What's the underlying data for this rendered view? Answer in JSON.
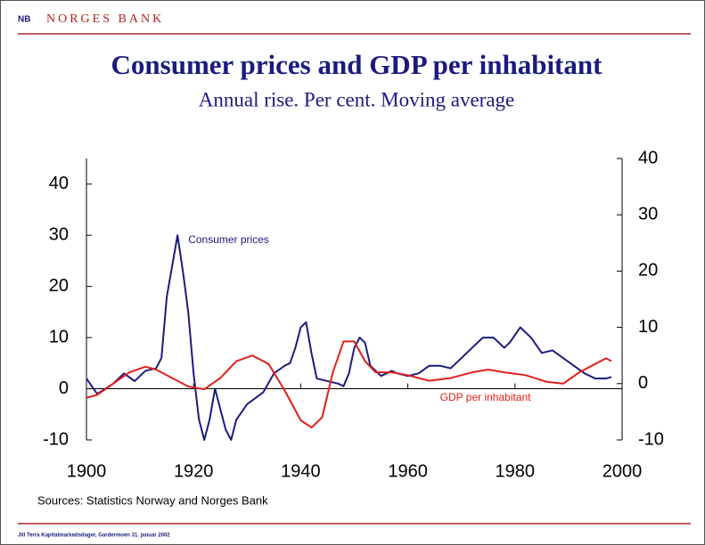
{
  "header": {
    "logo": "NB",
    "brand": "NORGES BANK"
  },
  "footer": "Jill Terra Kapitalmarkedsdager, Gardermoen 31. januar 2002",
  "chart_data": {
    "type": "line",
    "title": "Consumer prices and GDP per inhabitant",
    "subtitle": "Annual rise. Per cent. Moving average",
    "source": "Sources: Statistics Norway and Norges Bank",
    "xlim": [
      1900,
      2000
    ],
    "xticks": [
      1900,
      1920,
      1940,
      1960,
      1980,
      2000
    ],
    "ylim": [
      -10,
      45
    ],
    "yticks": [
      -10,
      0,
      10,
      20,
      30,
      40
    ],
    "y2lim": [
      -10,
      40
    ],
    "y2ticks": [
      -10,
      0,
      10,
      20,
      30,
      40
    ],
    "series": [
      {
        "name": "Consumer prices",
        "color": "#1b1b7d",
        "axis": "y",
        "x": [
          1900,
          1902,
          1905,
          1907,
          1909,
          1911,
          1913,
          1914,
          1915,
          1917,
          1918,
          1919,
          1920,
          1921,
          1922,
          1923,
          1924,
          1925,
          1926,
          1927,
          1928,
          1930,
          1933,
          1935,
          1937,
          1938,
          1939,
          1940,
          1941,
          1942,
          1943,
          1945,
          1947,
          1948,
          1949,
          1950,
          1951,
          1952,
          1953,
          1955,
          1957,
          1958,
          1960,
          1962,
          1964,
          1966,
          1968,
          1970,
          1972,
          1974,
          1976,
          1978,
          1979,
          1981,
          1983,
          1985,
          1987,
          1989,
          1991,
          1993,
          1995,
          1997,
          1998
        ],
        "values": [
          2,
          -1,
          1,
          3,
          1.5,
          3.5,
          4,
          6,
          18,
          30,
          23,
          15,
          3,
          -6,
          -10,
          -6,
          0,
          -4,
          -8,
          -10,
          -6,
          -3,
          -0.7,
          3,
          4.5,
          5,
          8,
          12,
          13,
          7,
          2,
          1.5,
          1,
          0.5,
          3,
          8,
          10,
          9,
          4.5,
          2.5,
          3.5,
          3,
          2.5,
          3,
          4.5,
          4.5,
          4,
          6,
          8,
          10,
          10,
          8,
          9,
          12,
          10,
          7,
          7.5,
          6,
          4.5,
          3,
          2,
          2,
          2.3
        ]
      },
      {
        "name": "GDP per inhabitant",
        "color": "#e0201a",
        "axis": "y2",
        "x": [
          1900,
          1902,
          1905,
          1908,
          1911,
          1913,
          1916,
          1919,
          1922,
          1925,
          1928,
          1931,
          1934,
          1937,
          1940,
          1942,
          1944,
          1946,
          1948,
          1950,
          1952,
          1954,
          1957,
          1960,
          1964,
          1968,
          1972,
          1975,
          1978,
          1982,
          1986,
          1989,
          1992,
          1995,
          1997,
          1998
        ],
        "values": [
          -2.5,
          -2,
          0,
          2,
          3,
          2.5,
          1,
          -0.5,
          -1,
          1,
          4,
          5,
          3.5,
          -1.2,
          -6.5,
          -7.8,
          -6,
          2,
          7.5,
          7.5,
          4,
          2,
          2,
          1.5,
          0.5,
          1,
          2,
          2.5,
          2,
          1.5,
          0.3,
          0,
          2,
          3.5,
          4.5,
          4
        ]
      }
    ],
    "annotations": [
      {
        "text": "Consumer prices",
        "x": 1919,
        "y": 29
      },
      {
        "text": "GDP per inhabitant",
        "x": 1966,
        "y": -2.5
      }
    ]
  }
}
